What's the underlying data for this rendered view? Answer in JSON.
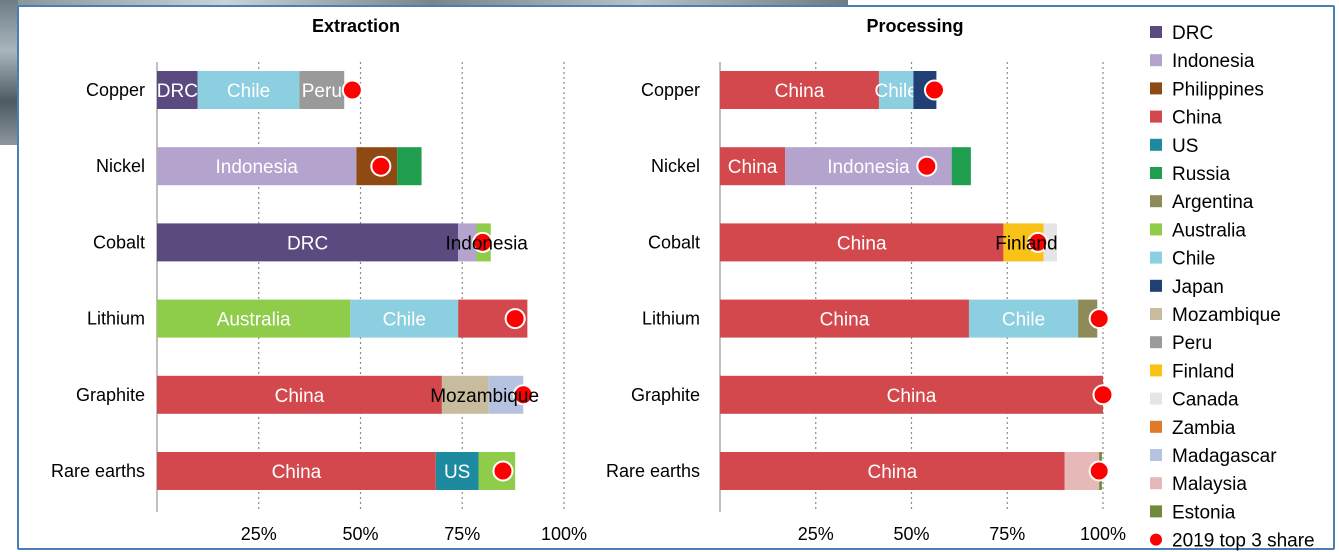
{
  "chart_data": {
    "type": "bar",
    "orientation": "horizontal",
    "stacked": true,
    "grid": "vertical dotted",
    "legend_position": "right",
    "categories": [
      "Copper",
      "Nickel",
      "Cobalt",
      "Lithium",
      "Graphite",
      "Rare earths"
    ],
    "x_ticks": [
      "25%",
      "50%",
      "75%",
      "100%"
    ],
    "xlim": [
      0,
      100
    ],
    "colors": {
      "DRC": "#5b4a7f",
      "Indonesia": "#b3a3cd",
      "Philippines": "#8e4a12",
      "China": "#d2484c",
      "US": "#1e8aa0",
      "Russia": "#1f9e4f",
      "Argentina": "#8f8a5a",
      "Australia": "#8fcc4a",
      "Chile": "#8ccfe0",
      "Japan": "#1f3f75",
      "Mozambique": "#c7bd9e",
      "Peru": "#9a9a9a",
      "Finland": "#f9c217",
      "Canada": "#e5e5e5",
      "Zambia": "#e0792a",
      "Madagascar": "#b5c3e0",
      "Malaysia": "#e6b8b8",
      "Estonia": "#6f8a3a",
      "2019 top 3 share": "#ff0000"
    },
    "legend": [
      "DRC",
      "Indonesia",
      "Philippines",
      "China",
      "US",
      "Russia",
      "Argentina",
      "Australia",
      "Chile",
      "Japan",
      "Mozambique",
      "Peru",
      "Finland",
      "Canada",
      "Zambia",
      "Madagascar",
      "Malaysia",
      "Estonia",
      "2019 top 3 share"
    ],
    "panels": [
      {
        "title": "Extraction",
        "rows": [
          {
            "category": "Copper",
            "top3": 48,
            "segments": [
              {
                "country": "DRC",
                "value": 10,
                "label": "DRC",
                "label_color": "#ffffff"
              },
              {
                "country": "Chile",
                "value": 25,
                "label": "Chile",
                "label_color": "#ffffff"
              },
              {
                "country": "Peru",
                "value": 11,
                "label": "Peru",
                "label_color": "#ffffff"
              }
            ]
          },
          {
            "category": "Nickel",
            "top3": 55,
            "segments": [
              {
                "country": "Indonesia",
                "value": 49,
                "label": "Indonesia",
                "label_color": "#ffffff"
              },
              {
                "country": "Philippines",
                "value": 10,
                "label": "",
                "label_color": "#ffffff"
              },
              {
                "country": "Russia",
                "value": 6,
                "label": "",
                "label_color": "#ffffff"
              }
            ]
          },
          {
            "category": "Cobalt",
            "top3": 80,
            "segments": [
              {
                "country": "DRC",
                "value": 74,
                "label": "DRC",
                "label_color": "#ffffff"
              },
              {
                "country": "Indonesia",
                "value": 4.5,
                "label": "",
                "label_color": "#000000"
              },
              {
                "country": "Australia",
                "value": 3.5,
                "label": "",
                "label_color": "#000000"
              }
            ],
            "overlay_label": {
              "text": "Indonesia",
              "at": 81,
              "color": "#000000"
            }
          },
          {
            "category": "Lithium",
            "top3": 88,
            "segments": [
              {
                "country": "Australia",
                "value": 47.5,
                "label": "Australia",
                "label_color": "#ffffff"
              },
              {
                "country": "Chile",
                "value": 26.5,
                "label": "Chile",
                "label_color": "#ffffff"
              },
              {
                "country": "China",
                "value": 17,
                "label": "",
                "label_color": "#ffffff"
              }
            ]
          },
          {
            "category": "Graphite",
            "top3": 90,
            "segments": [
              {
                "country": "China",
                "value": 70,
                "label": "China",
                "label_color": "#ffffff"
              },
              {
                "country": "Mozambique",
                "value": 11.5,
                "label": "",
                "label_color": "#000000"
              },
              {
                "country": "Madagascar",
                "value": 8.5,
                "label": "",
                "label_color": "#000000"
              }
            ],
            "overlay_label": {
              "text": "Mozambique",
              "at": 80.5,
              "color": "#000000"
            }
          },
          {
            "category": "Rare earths",
            "top3": 85,
            "segments": [
              {
                "country": "China",
                "value": 68.5,
                "label": "China",
                "label_color": "#ffffff"
              },
              {
                "country": "US",
                "value": 10.5,
                "label": "US",
                "label_color": "#ffffff"
              },
              {
                "country": "Australia",
                "value": 9,
                "label": "",
                "label_color": "#ffffff"
              }
            ]
          }
        ]
      },
      {
        "title": "Processing",
        "rows": [
          {
            "category": "Copper",
            "top3": 56,
            "segments": [
              {
                "country": "China",
                "value": 41.5,
                "label": "China",
                "label_color": "#ffffff"
              },
              {
                "country": "Chile",
                "value": 9,
                "label": "Chile",
                "label_color": "#ffffff"
              },
              {
                "country": "Japan",
                "value": 6,
                "label": "",
                "label_color": "#ffffff"
              }
            ]
          },
          {
            "category": "Nickel",
            "top3": 54,
            "segments": [
              {
                "country": "China",
                "value": 17,
                "label": "China",
                "label_color": "#ffffff"
              },
              {
                "country": "Indonesia",
                "value": 43.5,
                "label": "Indonesia",
                "label_color": "#ffffff"
              },
              {
                "country": "Russia",
                "value": 5,
                "label": "",
                "label_color": "#ffffff"
              }
            ]
          },
          {
            "category": "Cobalt",
            "top3": 83,
            "segments": [
              {
                "country": "China",
                "value": 74,
                "label": "China",
                "label_color": "#ffffff"
              },
              {
                "country": "Finland",
                "value": 10.5,
                "label": "",
                "label_color": "#000000"
              },
              {
                "country": "Canada",
                "value": 3.5,
                "label": "",
                "label_color": "#000000"
              }
            ],
            "overlay_label": {
              "text": "Finland",
              "at": 80,
              "color": "#000000"
            }
          },
          {
            "category": "Lithium",
            "top3": 99,
            "segments": [
              {
                "country": "China",
                "value": 65,
                "label": "China",
                "label_color": "#ffffff"
              },
              {
                "country": "Chile",
                "value": 28.5,
                "label": "Chile",
                "label_color": "#ffffff"
              },
              {
                "country": "Argentina",
                "value": 5,
                "label": "",
                "label_color": "#ffffff"
              }
            ]
          },
          {
            "category": "Graphite",
            "top3": 100,
            "segments": [
              {
                "country": "China",
                "value": 100,
                "label": "China",
                "label_color": "#ffffff"
              }
            ]
          },
          {
            "category": "Rare earths",
            "top3": 99,
            "segments": [
              {
                "country": "China",
                "value": 90,
                "label": "China",
                "label_color": "#ffffff"
              },
              {
                "country": "Malaysia",
                "value": 9,
                "label": "",
                "label_color": "#ffffff"
              },
              {
                "country": "Estonia",
                "value": 0.7,
                "label": "",
                "label_color": "#ffffff"
              }
            ]
          }
        ]
      }
    ]
  }
}
